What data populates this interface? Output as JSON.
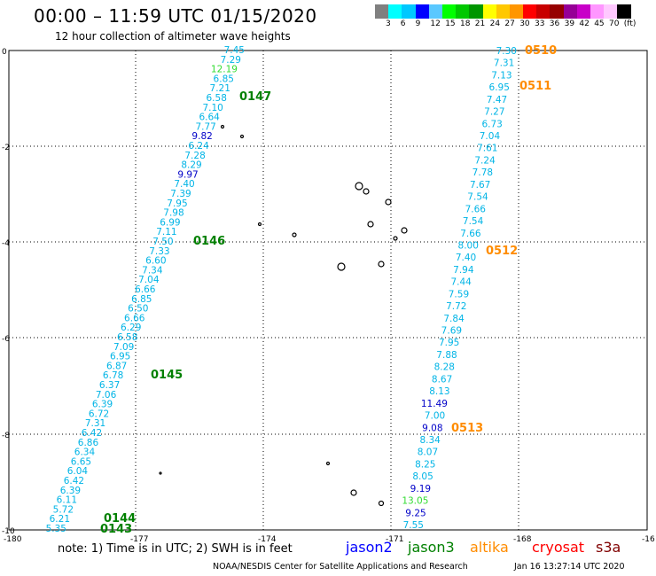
{
  "header": {
    "title": "00:00 – 11:59 UTC 01/15/2020",
    "subtitle": "12 hour collection of altimeter wave heights"
  },
  "legend": {
    "colors": [
      "#808080",
      "#00ffff",
      "#00c8ff",
      "#0000ff",
      "#5ac8ff",
      "#00ff00",
      "#00c800",
      "#009600",
      "#ffff00",
      "#ffc800",
      "#ff9600",
      "#ff0000",
      "#c80000",
      "#960000",
      "#960096",
      "#c800c8",
      "#ff96ff",
      "#ffc8ff",
      "#000000"
    ],
    "labels": [
      "3",
      "6",
      "9",
      "12",
      "15",
      "18",
      "21",
      "24",
      "27",
      "30",
      "33",
      "36",
      "39",
      "42",
      "45",
      "70",
      "(ft)"
    ]
  },
  "axes": {
    "x_ticks": [
      "-180",
      "-177",
      "-174",
      "-171",
      "-168",
      "-16"
    ],
    "y_ticks": [
      "0",
      "-2",
      "-4",
      "-6",
      "-8",
      "-10"
    ]
  },
  "tracks": [
    {
      "values": [
        {
          "v": "7.45",
          "c": "#00b4e6"
        },
        {
          "v": "7.29",
          "c": "#00b4e6"
        },
        {
          "v": "12.19",
          "c": "#32dc32"
        },
        {
          "v": "6.85",
          "c": "#00b4e6"
        },
        {
          "v": "7.21",
          "c": "#00b4e6"
        },
        {
          "v": "6.58",
          "c": "#00b4e6"
        },
        {
          "v": "7.10",
          "c": "#00b4e6"
        },
        {
          "v": "6.64",
          "c": "#00b4e6"
        },
        {
          "v": "7.77",
          "c": "#00b4e6"
        },
        {
          "v": "9.82",
          "c": "#0000c8"
        },
        {
          "v": "6.24",
          "c": "#00b4e6"
        },
        {
          "v": "7.28",
          "c": "#00b4e6"
        },
        {
          "v": "8.29",
          "c": "#00b4e6"
        },
        {
          "v": "9.97",
          "c": "#0000c8"
        },
        {
          "v": "7.40",
          "c": "#00b4e6"
        },
        {
          "v": "7.39",
          "c": "#00b4e6"
        },
        {
          "v": "7.95",
          "c": "#00b4e6"
        },
        {
          "v": "7.98",
          "c": "#00b4e6"
        },
        {
          "v": "6.99",
          "c": "#00b4e6"
        },
        {
          "v": "7.11",
          "c": "#00b4e6"
        },
        {
          "v": "7.50",
          "c": "#00b4e6"
        },
        {
          "v": "7.33",
          "c": "#00b4e6"
        },
        {
          "v": "6.60",
          "c": "#00b4e6"
        },
        {
          "v": "7.34",
          "c": "#00b4e6"
        },
        {
          "v": "7.04",
          "c": "#00b4e6"
        },
        {
          "v": "6.66",
          "c": "#00b4e6"
        },
        {
          "v": "6.85",
          "c": "#00b4e6"
        },
        {
          "v": "6.50",
          "c": "#00b4e6"
        },
        {
          "v": "6.66",
          "c": "#00b4e6"
        },
        {
          "v": "6.29",
          "c": "#00b4e6"
        },
        {
          "v": "6.58",
          "c": "#00b4e6"
        },
        {
          "v": "7.09",
          "c": "#00b4e6"
        },
        {
          "v": "6.95",
          "c": "#00b4e6"
        },
        {
          "v": "6.87",
          "c": "#00b4e6"
        },
        {
          "v": "6.78",
          "c": "#00b4e6"
        },
        {
          "v": "6.37",
          "c": "#00b4e6"
        },
        {
          "v": "7.06",
          "c": "#00b4e6"
        },
        {
          "v": "6.39",
          "c": "#00b4e6"
        },
        {
          "v": "6.72",
          "c": "#00b4e6"
        },
        {
          "v": "7.31",
          "c": "#00b4e6"
        },
        {
          "v": "6.42",
          "c": "#00b4e6"
        },
        {
          "v": "6.86",
          "c": "#00b4e6"
        },
        {
          "v": "6.34",
          "c": "#00b4e6"
        },
        {
          "v": "6.65",
          "c": "#00b4e6"
        },
        {
          "v": "6.04",
          "c": "#00b4e6"
        },
        {
          "v": "6.42",
          "c": "#00b4e6"
        },
        {
          "v": "6.39",
          "c": "#00b4e6"
        },
        {
          "v": "6.11",
          "c": "#00b4e6"
        },
        {
          "v": "5.72",
          "c": "#00b4e6"
        },
        {
          "v": "6.21",
          "c": "#00b4e6"
        },
        {
          "v": "5.35",
          "c": "#00b4e6"
        }
      ]
    },
    {
      "values": [
        {
          "v": "7.30",
          "c": "#00b4e6"
        },
        {
          "v": "7.31",
          "c": "#00b4e6"
        },
        {
          "v": "7.13",
          "c": "#00b4e6"
        },
        {
          "v": "6.95",
          "c": "#00b4e6"
        },
        {
          "v": "7.47",
          "c": "#00b4e6"
        },
        {
          "v": "7.27",
          "c": "#00b4e6"
        },
        {
          "v": "6.73",
          "c": "#00b4e6"
        },
        {
          "v": "7.04",
          "c": "#00b4e6"
        },
        {
          "v": "7.61",
          "c": "#00b4e6"
        },
        {
          "v": "7.24",
          "c": "#00b4e6"
        },
        {
          "v": "7.78",
          "c": "#00b4e6"
        },
        {
          "v": "7.67",
          "c": "#00b4e6"
        },
        {
          "v": "7.54",
          "c": "#00b4e6"
        },
        {
          "v": "7.66",
          "c": "#00b4e6"
        },
        {
          "v": "7.54",
          "c": "#00b4e6"
        },
        {
          "v": "7.66",
          "c": "#00b4e6"
        },
        {
          "v": "8.00",
          "c": "#00b4e6"
        },
        {
          "v": "7.40",
          "c": "#00b4e6"
        },
        {
          "v": "7.94",
          "c": "#00b4e6"
        },
        {
          "v": "7.44",
          "c": "#00b4e6"
        },
        {
          "v": "7.59",
          "c": "#00b4e6"
        },
        {
          "v": "7.72",
          "c": "#00b4e6"
        },
        {
          "v": "7.84",
          "c": "#00b4e6"
        },
        {
          "v": "7.69",
          "c": "#00b4e6"
        },
        {
          "v": "7.95",
          "c": "#00b4e6"
        },
        {
          "v": "7.88",
          "c": "#00b4e6"
        },
        {
          "v": "8.28",
          "c": "#00b4e6"
        },
        {
          "v": "8.67",
          "c": "#00b4e6"
        },
        {
          "v": "8.13",
          "c": "#00b4e6"
        },
        {
          "v": "11.49",
          "c": "#0000c8"
        },
        {
          "v": "7.00",
          "c": "#00b4e6"
        },
        {
          "v": "9.08",
          "c": "#0000c8"
        },
        {
          "v": "8.34",
          "c": "#00b4e6"
        },
        {
          "v": "8.07",
          "c": "#00b4e6"
        },
        {
          "v": "8.25",
          "c": "#00b4e6"
        },
        {
          "v": "8.05",
          "c": "#00b4e6"
        },
        {
          "v": "9.19",
          "c": "#0000c8"
        },
        {
          "v": "13.05",
          "c": "#32dc32"
        },
        {
          "v": "9.25",
          "c": "#0000c8"
        },
        {
          "v": "7.55",
          "c": "#00b4e6"
        }
      ]
    }
  ],
  "pass_labels": [
    {
      "text": "0147",
      "color": "#008000"
    },
    {
      "text": "0146",
      "color": "#008000"
    },
    {
      "text": "0145",
      "color": "#008000"
    },
    {
      "text": "0144",
      "color": "#008000"
    },
    {
      "text": "0143",
      "color": "#008000"
    },
    {
      "text": "0510",
      "color": "#ff8c00"
    },
    {
      "text": "0511",
      "color": "#ff8c00"
    },
    {
      "text": "0512",
      "color": "#ff8c00"
    },
    {
      "text": "0513",
      "color": "#ff8c00"
    }
  ],
  "footer": {
    "note": "note:  1) Time is in UTC;  2) SWH is in feet",
    "satellites": [
      {
        "name": "jason2",
        "color": "#0000ff"
      },
      {
        "name": "jason3",
        "color": "#008000"
      },
      {
        "name": "altika",
        "color": "#ff8c00"
      },
      {
        "name": "cryosat",
        "color": "#ff0000"
      },
      {
        "name": "s3a",
        "color": "#800000"
      }
    ],
    "credit": "NOAA/NESDIS Center for Satellite Applications and Research",
    "timestamp": "Jan 16 13:27:14 UTC 2020"
  }
}
